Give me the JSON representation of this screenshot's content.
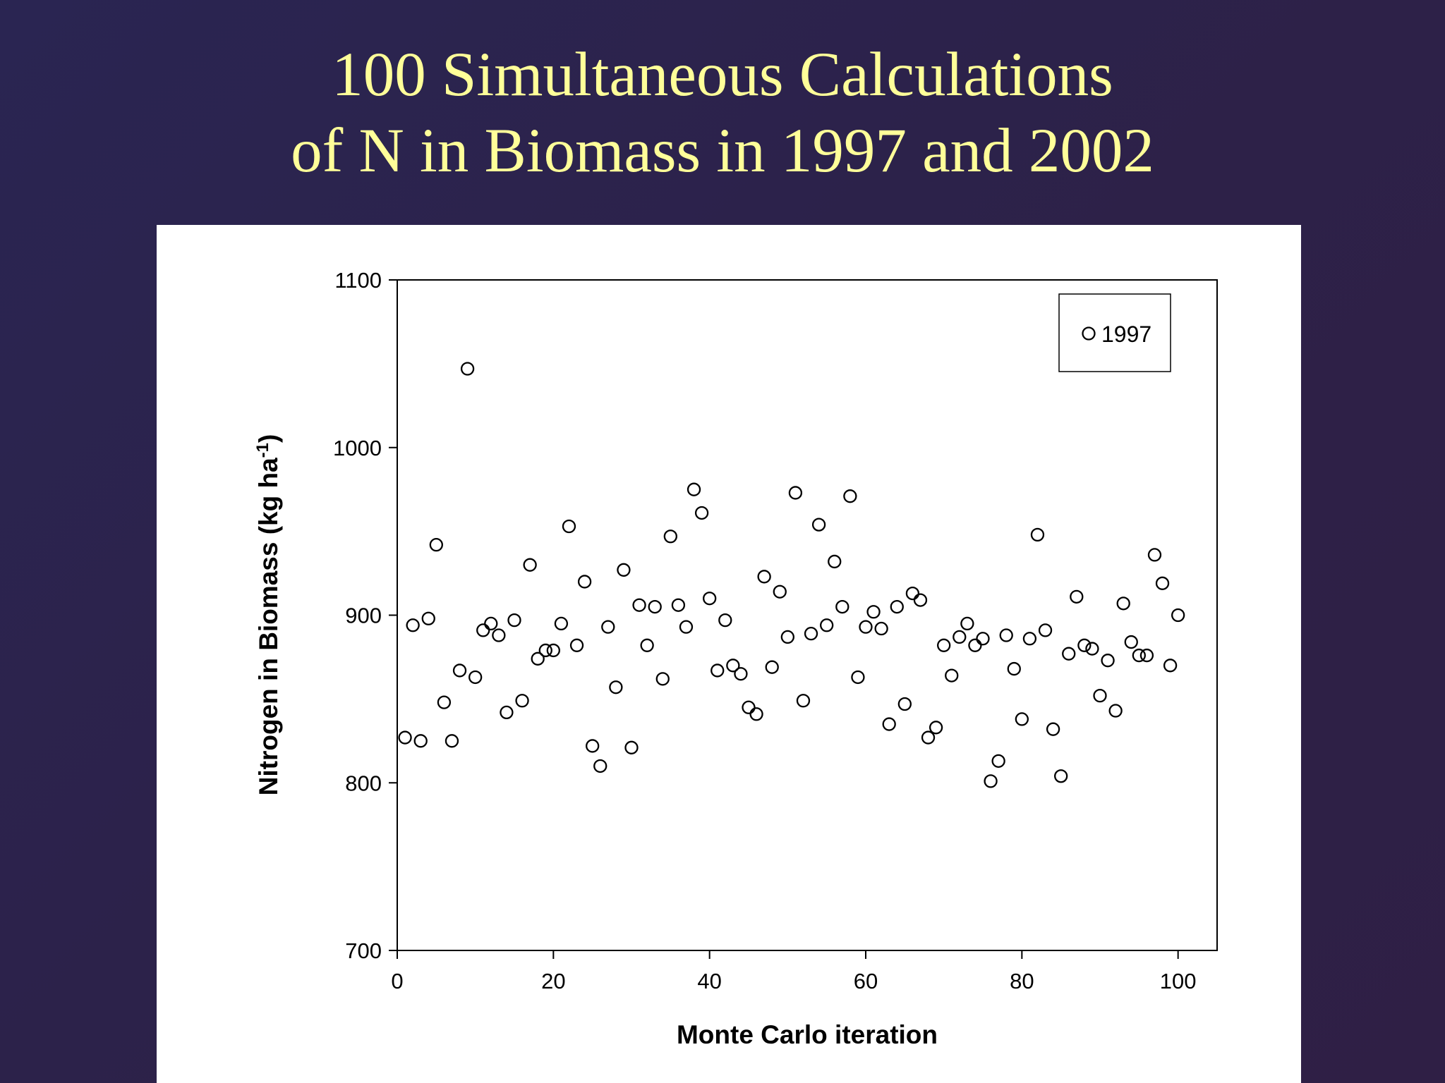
{
  "slide": {
    "title_line1": "100 Simultaneous Calculations",
    "title_line2": "of N in Biomass in 1997 and 2002",
    "background": "#2d2249",
    "title_color": "#ffff99"
  },
  "chart_data": {
    "type": "scatter",
    "title": "",
    "xlabel": "Monte Carlo iteration",
    "ylabel": "Nitrogen in Biomass (kg ha",
    "ylabel_superscript": "-1",
    "ylabel_suffix": ")",
    "xlim": [
      0,
      105
    ],
    "ylim": [
      700,
      1100
    ],
    "xticks": [
      0,
      20,
      40,
      60,
      80,
      100
    ],
    "yticks": [
      700,
      800,
      900,
      1000,
      1100
    ],
    "xtick_labels": [
      "0",
      "20",
      "40",
      "60",
      "80",
      "100"
    ],
    "ytick_labels": [
      "700",
      "800",
      "900",
      "1000",
      "1100"
    ],
    "grid": false,
    "legend_position": "top-right",
    "series": [
      {
        "name": "1997",
        "marker": "open-circle",
        "color": "#000000",
        "x": [
          1,
          2,
          3,
          4,
          5,
          6,
          7,
          8,
          9,
          10,
          11,
          12,
          13,
          14,
          15,
          16,
          17,
          18,
          19,
          20,
          21,
          22,
          23,
          24,
          25,
          26,
          27,
          28,
          29,
          30,
          31,
          32,
          33,
          34,
          35,
          36,
          37,
          38,
          39,
          40,
          41,
          42,
          43,
          44,
          45,
          46,
          47,
          48,
          49,
          50,
          51,
          52,
          53,
          54,
          55,
          56,
          57,
          58,
          59,
          60,
          61,
          62,
          63,
          64,
          65,
          66,
          67,
          68,
          69,
          70,
          71,
          72,
          73,
          74,
          75,
          76,
          77,
          78,
          79,
          80,
          81,
          82,
          83,
          84,
          85,
          86,
          87,
          88,
          89,
          90,
          91,
          92,
          93,
          94,
          95,
          96,
          97,
          98,
          99,
          100
        ],
        "y": [
          827,
          894,
          825,
          898,
          942,
          848,
          825,
          867,
          1047,
          863,
          891,
          895,
          888,
          842,
          897,
          849,
          930,
          874,
          879,
          879,
          895,
          953,
          882,
          920,
          822,
          810,
          893,
          857,
          927,
          821,
          906,
          882,
          905,
          862,
          947,
          906,
          893,
          975,
          961,
          910,
          867,
          897,
          870,
          865,
          845,
          841,
          923,
          869,
          914,
          887,
          973,
          849,
          889,
          954,
          894,
          932,
          905,
          971,
          863,
          893,
          902,
          892,
          835,
          905,
          847,
          913,
          909,
          827,
          833,
          882,
          864,
          887,
          895,
          882,
          886,
          801,
          813,
          888,
          868,
          838,
          886,
          948,
          891,
          832,
          804,
          877,
          911,
          882,
          880,
          852,
          873,
          843,
          907,
          884,
          876,
          876,
          936,
          919,
          870,
          900
        ]
      }
    ]
  }
}
